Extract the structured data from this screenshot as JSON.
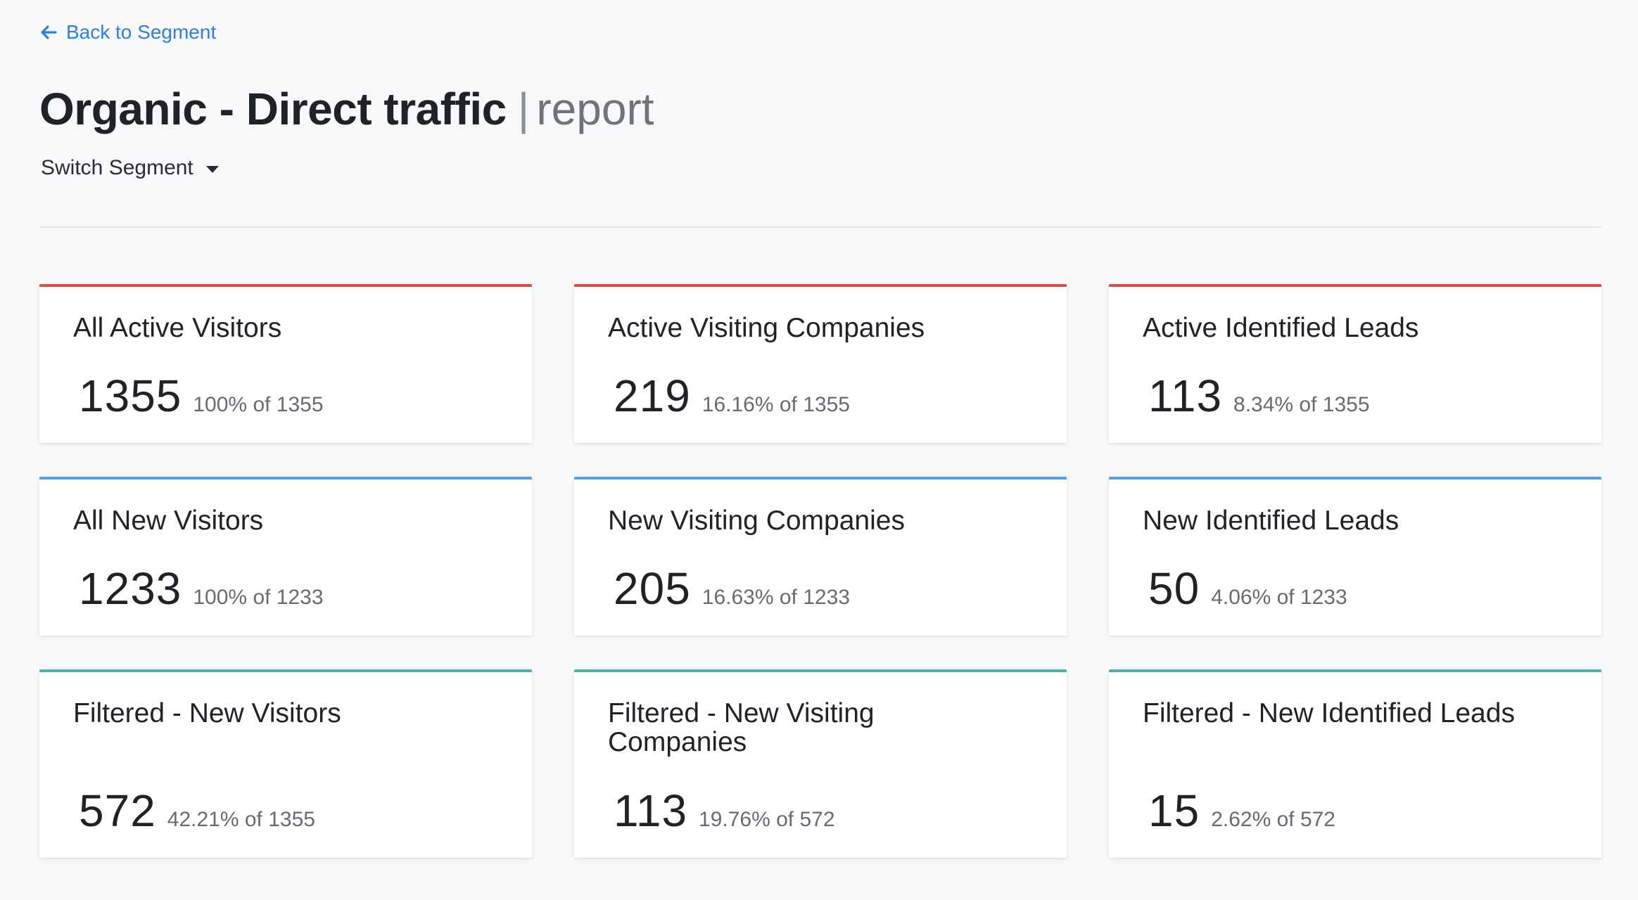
{
  "nav": {
    "back_label": "Back to Segment"
  },
  "header": {
    "title": "Organic - Direct traffic",
    "separator": "|",
    "subtitle": "report",
    "switch_segment_label": "Switch Segment"
  },
  "colors": {
    "accent_link": "#2f7ee0",
    "active_row": "#d44f44",
    "new_row": "#5a9fd6",
    "filtered_row": "#52b0ab"
  },
  "cards": [
    {
      "title": "All Active Visitors",
      "value": "1355",
      "pct": "100% of 1355"
    },
    {
      "title": "Active Visiting Companies",
      "value": "219",
      "pct": "16.16% of 1355"
    },
    {
      "title": "Active Identified Leads",
      "value": "113",
      "pct": "8.34% of 1355"
    },
    {
      "title": "All New Visitors",
      "value": "1233",
      "pct": "100% of 1233"
    },
    {
      "title": "New Visiting Companies",
      "value": "205",
      "pct": "16.63% of 1233"
    },
    {
      "title": "New Identified Leads",
      "value": "50",
      "pct": "4.06% of 1233"
    },
    {
      "title": "Filtered - New Visitors",
      "value": "572",
      "pct": "42.21% of 1355"
    },
    {
      "title": "Filtered - New Visiting Companies",
      "value": "113",
      "pct": "19.76% of 572"
    },
    {
      "title": "Filtered - New Identified Leads",
      "value": "15",
      "pct": "2.62% of 572"
    }
  ]
}
